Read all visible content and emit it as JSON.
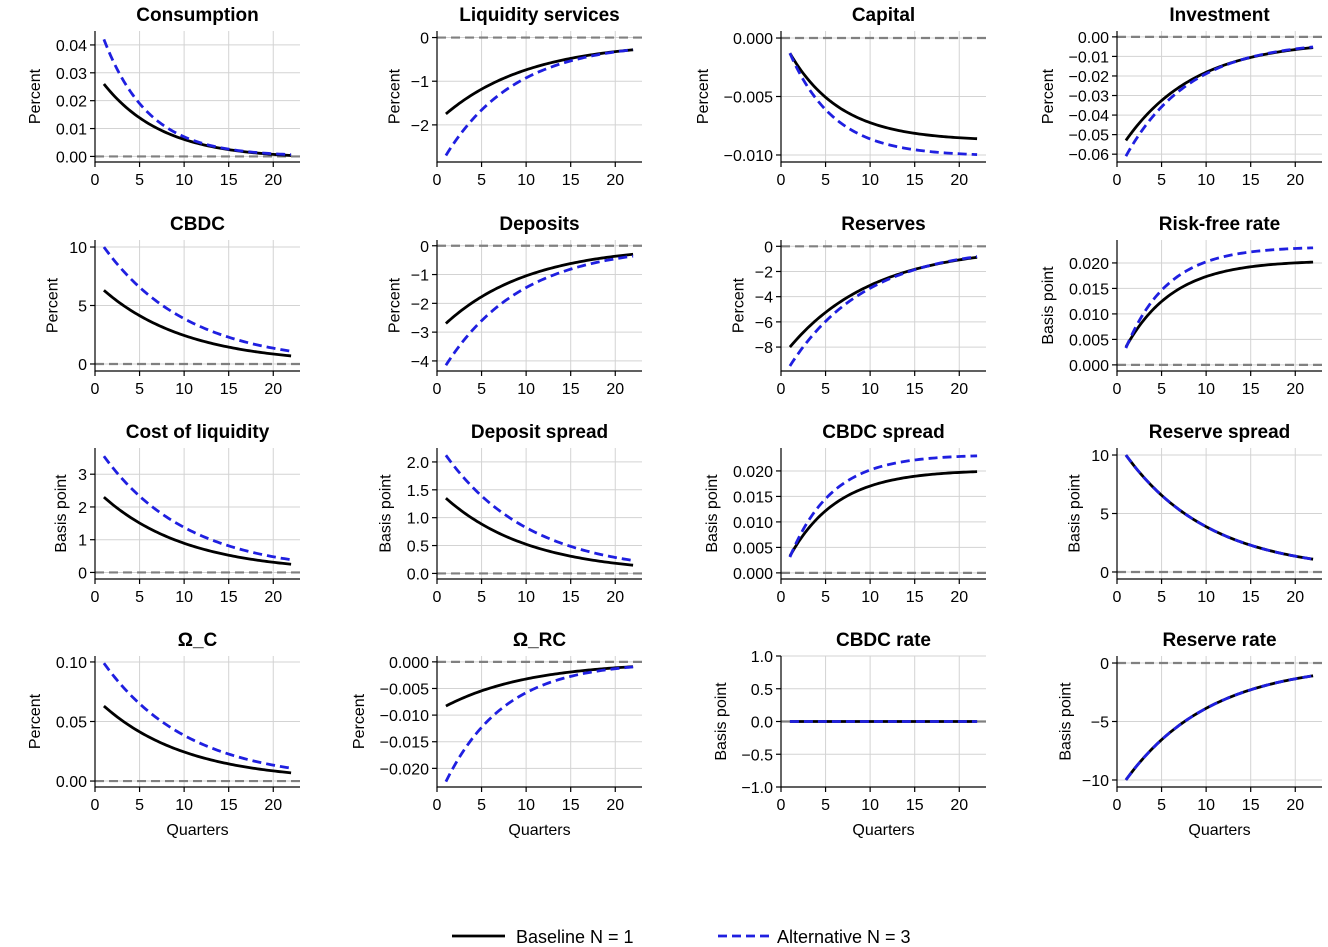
{
  "legend": {
    "series": [
      {
        "name": "Baseline N = 1",
        "color": "#000000",
        "style": "solid"
      },
      {
        "name": "Alternative N = 3",
        "color": "#1f1fe0",
        "style": "dashed"
      }
    ]
  },
  "chart_data": [
    {
      "type": "line",
      "title": "Consumption",
      "ylabel": "Percent",
      "xlabel": "",
      "xlim": [
        0,
        23
      ],
      "ylim": [
        -0.002,
        0.045
      ],
      "xticks": [
        0,
        5,
        10,
        15,
        20
      ],
      "xtick_labels": [
        "0",
        "5",
        "10",
        "15",
        "20"
      ],
      "yticks": [
        0,
        0.01,
        0.02,
        0.03,
        0.04
      ],
      "ytick_labels": [
        "0.00",
        "0.01",
        "0.02",
        "0.03",
        "0.04"
      ],
      "baseline_model": "decay",
      "baseline_params": [
        0.026,
        -0.0008,
        0.86
      ],
      "alternative_model": "decay",
      "alternative_params": [
        0.042,
        0,
        0.82
      ]
    },
    {
      "type": "line",
      "title": "Liquidity services",
      "ylabel": "Percent",
      "xlabel": "",
      "xlim": [
        0,
        23
      ],
      "ylim": [
        -2.85,
        0.15
      ],
      "xticks": [
        0,
        5,
        10,
        15,
        20
      ],
      "xtick_labels": [
        "0",
        "5",
        "10",
        "15",
        "20"
      ],
      "yticks": [
        -2,
        -1,
        0
      ],
      "ytick_labels": [
        "−2",
        "−1",
        "0"
      ],
      "baseline_model": "decay",
      "baseline_params": [
        -1.75,
        -0.1,
        0.9
      ],
      "alternative_model": "decay",
      "alternative_params": [
        -2.7,
        -0.1,
        0.88
      ]
    },
    {
      "type": "line",
      "title": "Capital",
      "ylabel": "Percent",
      "xlabel": "",
      "xlim": [
        0,
        23
      ],
      "ylim": [
        -0.0106,
        0.0006
      ],
      "xticks": [
        0,
        5,
        10,
        15,
        20
      ],
      "xtick_labels": [
        "0",
        "5",
        "10",
        "15",
        "20"
      ],
      "yticks": [
        -0.01,
        -0.005,
        0
      ],
      "ytick_labels": [
        "−0.010",
        "−0.005",
        "0.000"
      ],
      "baseline_model": "growth",
      "baseline_params": [
        -0.0088,
        -0.0013,
        0.84
      ],
      "alternative_model": "growth",
      "alternative_params": [
        -0.0101,
        -0.0013,
        0.82
      ]
    },
    {
      "type": "line",
      "title": "Investment",
      "ylabel": "Percent",
      "xlabel": "",
      "xlim": [
        0,
        23
      ],
      "ylim": [
        -0.064,
        0.003
      ],
      "xticks": [
        0,
        5,
        10,
        15,
        20
      ],
      "xtick_labels": [
        "0",
        "5",
        "10",
        "15",
        "20"
      ],
      "yticks": [
        -0.06,
        -0.05,
        -0.04,
        -0.03,
        -0.02,
        -0.01,
        0
      ],
      "ytick_labels": [
        "−0.06",
        "−0.05",
        "−0.04",
        "−0.03",
        "−0.02",
        "−0.01",
        "0.00"
      ],
      "baseline_model": "decay",
      "baseline_params": [
        -0.053,
        -0.002,
        0.88
      ],
      "alternative_model": "decay",
      "alternative_params": [
        -0.061,
        -0.002,
        0.87
      ]
    },
    {
      "type": "line",
      "title": "CBDC",
      "ylabel": "Percent",
      "xlabel": "",
      "xlim": [
        0,
        23
      ],
      "ylim": [
        -0.6,
        10.6
      ],
      "xticks": [
        0,
        5,
        10,
        15,
        20
      ],
      "xtick_labels": [
        "0",
        "5",
        "10",
        "15",
        "20"
      ],
      "yticks": [
        0,
        5,
        10
      ],
      "ytick_labels": [
        "0",
        "5",
        "10"
      ],
      "baseline_model": "decay",
      "baseline_params": [
        6.3,
        0,
        0.9
      ],
      "alternative_model": "decay",
      "alternative_params": [
        10.0,
        0,
        0.9
      ]
    },
    {
      "type": "line",
      "title": "Deposits",
      "ylabel": "Percent",
      "xlabel": "",
      "xlim": [
        0,
        23
      ],
      "ylim": [
        -4.35,
        0.2
      ],
      "xticks": [
        0,
        5,
        10,
        15,
        20
      ],
      "xtick_labels": [
        "0",
        "5",
        "10",
        "15",
        "20"
      ],
      "yticks": [
        -4,
        -3,
        -2,
        -1,
        0
      ],
      "ytick_labels": [
        "−4",
        "−3",
        "−2",
        "−1",
        "0"
      ],
      "baseline_model": "decay",
      "baseline_params": [
        -2.7,
        0,
        0.9
      ],
      "alternative_model": "decay",
      "alternative_params": [
        -4.15,
        0,
        0.89
      ]
    },
    {
      "type": "line",
      "title": "Reserves",
      "ylabel": "Percent",
      "xlabel": "",
      "xlim": [
        0,
        23
      ],
      "ylim": [
        -9.9,
        0.5
      ],
      "xticks": [
        0,
        5,
        10,
        15,
        20
      ],
      "xtick_labels": [
        "0",
        "5",
        "10",
        "15",
        "20"
      ],
      "yticks": [
        -8,
        -6,
        -4,
        -2,
        0
      ],
      "ytick_labels": [
        "−8",
        "−6",
        "−4",
        "−2",
        "0"
      ],
      "baseline_model": "decay",
      "baseline_params": [
        -8.0,
        0,
        0.9
      ],
      "alternative_model": "decay",
      "alternative_params": [
        -9.5,
        0,
        0.89
      ]
    },
    {
      "type": "line",
      "title": "Risk-free rate",
      "ylabel": "Basis point",
      "xlabel": "",
      "xlim": [
        0,
        23
      ],
      "ylim": [
        -0.0012,
        0.0245
      ],
      "xticks": [
        0,
        5,
        10,
        15,
        20
      ],
      "xtick_labels": [
        "0",
        "5",
        "10",
        "15",
        "20"
      ],
      "yticks": [
        0,
        0.005,
        0.01,
        0.015,
        0.02
      ],
      "ytick_labels": [
        "0.000",
        "0.005",
        "0.010",
        "0.015",
        "0.020"
      ],
      "baseline_model": "growth",
      "baseline_params": [
        0.0205,
        0.0035,
        0.83
      ],
      "alternative_model": "growth",
      "alternative_params": [
        0.0232,
        0.0033,
        0.81
      ]
    },
    {
      "type": "line",
      "title": "Cost of liquidity",
      "ylabel": "Basis point",
      "xlabel": "",
      "xlim": [
        0,
        23
      ],
      "ylim": [
        -0.2,
        3.8
      ],
      "xticks": [
        0,
        5,
        10,
        15,
        20
      ],
      "xtick_labels": [
        "0",
        "5",
        "10",
        "15",
        "20"
      ],
      "yticks": [
        0,
        1,
        2,
        3
      ],
      "ytick_labels": [
        "0",
        "1",
        "2",
        "3"
      ],
      "baseline_model": "decay",
      "baseline_params": [
        2.3,
        0,
        0.9
      ],
      "alternative_model": "decay",
      "alternative_params": [
        3.55,
        0,
        0.9
      ]
    },
    {
      "type": "line",
      "title": "Deposit spread",
      "ylabel": "Basis point",
      "xlabel": "",
      "xlim": [
        0,
        23
      ],
      "ylim": [
        -0.1,
        2.25
      ],
      "xticks": [
        0,
        5,
        10,
        15,
        20
      ],
      "xtick_labels": [
        "0",
        "5",
        "10",
        "15",
        "20"
      ],
      "yticks": [
        0,
        0.5,
        1,
        1.5,
        2
      ],
      "ytick_labels": [
        "0.0",
        "0.5",
        "1.0",
        "1.5",
        "2.0"
      ],
      "baseline_model": "decay",
      "baseline_params": [
        1.35,
        0,
        0.9
      ],
      "alternative_model": "decay",
      "alternative_params": [
        2.12,
        0,
        0.9
      ]
    },
    {
      "type": "line",
      "title": "CBDC spread",
      "ylabel": "Basis point",
      "xlabel": "",
      "xlim": [
        0,
        23
      ],
      "ylim": [
        -0.0012,
        0.0245
      ],
      "xticks": [
        0,
        5,
        10,
        15,
        20
      ],
      "xtick_labels": [
        "0",
        "5",
        "10",
        "15",
        "20"
      ],
      "yticks": [
        0,
        0.005,
        0.01,
        0.015,
        0.02
      ],
      "ytick_labels": [
        "0.000",
        "0.005",
        "0.010",
        "0.015",
        "0.020"
      ],
      "baseline_model": "growth",
      "baseline_params": [
        0.0202,
        0.0033,
        0.83
      ],
      "alternative_model": "growth",
      "alternative_params": [
        0.0232,
        0.0031,
        0.81
      ]
    },
    {
      "type": "line",
      "title": "Reserve spread",
      "ylabel": "Basis point",
      "xlabel": "",
      "xlim": [
        0,
        23
      ],
      "ylim": [
        -0.6,
        10.6
      ],
      "xticks": [
        0,
        5,
        10,
        15,
        20
      ],
      "xtick_labels": [
        "0",
        "5",
        "10",
        "15",
        "20"
      ],
      "yticks": [
        0,
        5,
        10
      ],
      "ytick_labels": [
        "0",
        "5",
        "10"
      ],
      "baseline_model": "decay",
      "baseline_params": [
        10.0,
        0,
        0.9
      ],
      "alternative_model": "decay",
      "alternative_params": [
        10.0,
        0,
        0.9
      ]
    },
    {
      "type": "line",
      "title": "Ω_C",
      "ylabel": "Percent",
      "xlabel": "Quarters",
      "xlim": [
        0,
        23
      ],
      "ylim": [
        -0.005,
        0.105
      ],
      "xticks": [
        0,
        5,
        10,
        15,
        20
      ],
      "xtick_labels": [
        "0",
        "5",
        "10",
        "15",
        "20"
      ],
      "yticks": [
        0,
        0.05,
        0.1
      ],
      "ytick_labels": [
        "0.00",
        "0.05",
        "0.10"
      ],
      "baseline_model": "decay",
      "baseline_params": [
        0.063,
        0,
        0.9
      ],
      "alternative_model": "decay",
      "alternative_params": [
        0.099,
        0,
        0.9
      ]
    },
    {
      "type": "line",
      "title": "Ω_RC",
      "ylabel": "Percent",
      "xlabel": "Quarters",
      "xlim": [
        0,
        23
      ],
      "ylim": [
        -0.0235,
        0.0011
      ],
      "xticks": [
        0,
        5,
        10,
        15,
        20
      ],
      "xtick_labels": [
        "0",
        "5",
        "10",
        "15",
        "20"
      ],
      "yticks": [
        -0.02,
        -0.015,
        -0.01,
        -0.005,
        0
      ],
      "ytick_labels": [
        "−0.020",
        "−0.015",
        "−0.010",
        "−0.005",
        "0.000"
      ],
      "baseline_model": "decay",
      "baseline_params": [
        -0.0083,
        0,
        0.9
      ],
      "alternative_model": "decay",
      "alternative_params": [
        -0.0225,
        0,
        0.86
      ]
    },
    {
      "type": "line",
      "title": "CBDC rate",
      "ylabel": "Basis point",
      "xlabel": "Quarters",
      "xlim": [
        0,
        23
      ],
      "ylim": [
        -1.0,
        1.0
      ],
      "xticks": [
        0,
        5,
        10,
        15,
        20
      ],
      "xtick_labels": [
        "0",
        "5",
        "10",
        "15",
        "20"
      ],
      "yticks": [
        -1,
        -0.5,
        0,
        0.5,
        1
      ],
      "ytick_labels": [
        "−1.0",
        "−0.5",
        "0.0",
        "0.5",
        "1.0"
      ],
      "baseline_model": "decay",
      "baseline_params": [
        0,
        0,
        0.9
      ],
      "alternative_model": "decay",
      "alternative_params": [
        0,
        0,
        0.9
      ]
    },
    {
      "type": "line",
      "title": "Reserve rate",
      "ylabel": "Basis point",
      "xlabel": "Quarters",
      "xlim": [
        0,
        23
      ],
      "ylim": [
        -10.6,
        0.6
      ],
      "xticks": [
        0,
        5,
        10,
        15,
        20
      ],
      "xtick_labels": [
        "0",
        "5",
        "10",
        "15",
        "20"
      ],
      "yticks": [
        -10,
        -5,
        0
      ],
      "ytick_labels": [
        "−10",
        "−5",
        "0"
      ],
      "baseline_model": "decay",
      "baseline_params": [
        -10.0,
        0,
        0.9
      ],
      "alternative_model": "decay",
      "alternative_params": [
        -10.0,
        0,
        0.9
      ]
    }
  ]
}
